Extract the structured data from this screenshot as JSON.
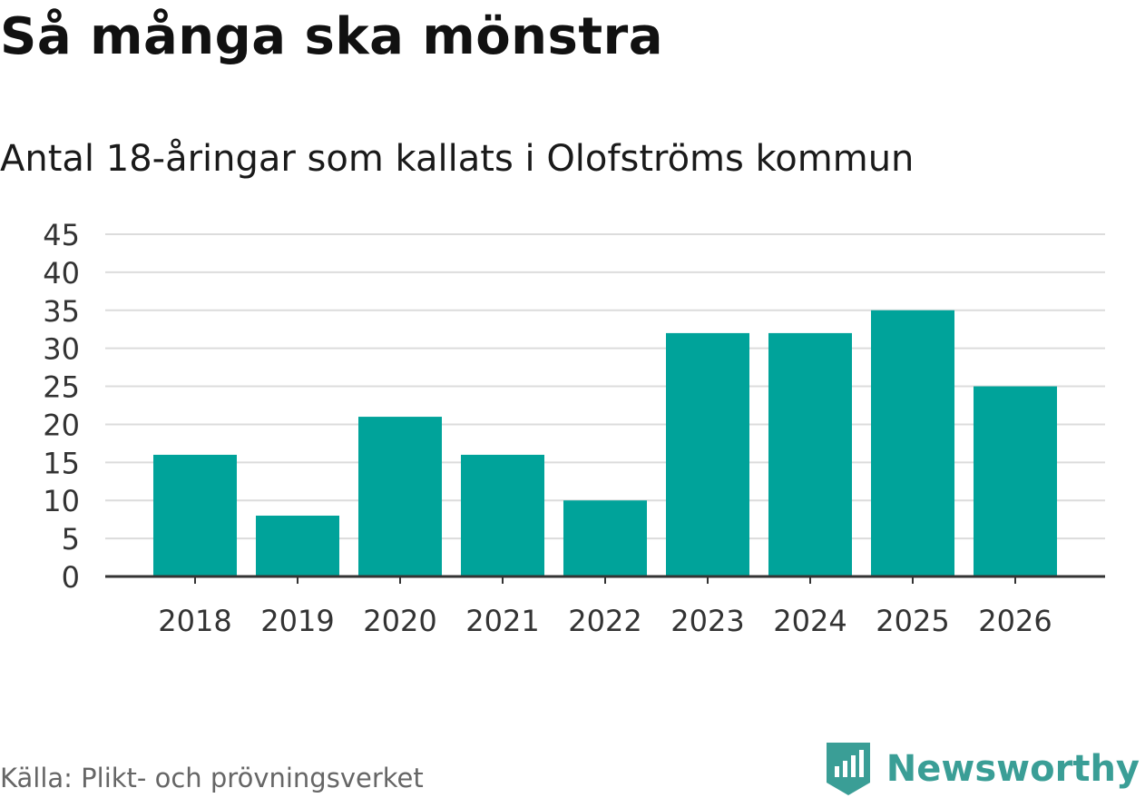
{
  "header": {
    "title": "Så många ska mönstra",
    "subtitle": "Antal 18-åringar som kallats i Olofströms kommun"
  },
  "footer": {
    "source": "Källa: Plikt- och prövningsverket",
    "brand": "Newsworthy",
    "brand_icon": "newsworthy-logo-icon"
  },
  "colors": {
    "bar": "#00a39a",
    "grid": "#dcdcdc",
    "axis": "#333333",
    "brand": "#3a9e96"
  },
  "chart_data": {
    "type": "bar",
    "title": "Antal 18-åringar som kallats i Olofströms kommun",
    "xlabel": "",
    "ylabel": "",
    "categories": [
      "2018",
      "2019",
      "2020",
      "2021",
      "2022",
      "2023",
      "2024",
      "2025",
      "2026"
    ],
    "values": [
      16,
      8,
      21,
      16,
      10,
      32,
      32,
      35,
      25
    ],
    "ylim": [
      0,
      45
    ],
    "yticks": [
      "0",
      "5",
      "10",
      "15",
      "20",
      "25",
      "30",
      "35",
      "40",
      "45"
    ],
    "grid": true,
    "legend": "none"
  }
}
